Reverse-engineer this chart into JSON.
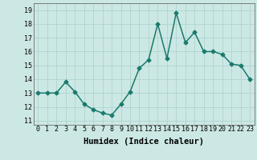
{
  "x": [
    0,
    1,
    2,
    3,
    4,
    5,
    6,
    7,
    8,
    9,
    10,
    11,
    12,
    13,
    14,
    15,
    16,
    17,
    18,
    19,
    20,
    21,
    22,
    23
  ],
  "y": [
    13.0,
    13.0,
    13.0,
    13.8,
    13.1,
    12.2,
    11.8,
    11.55,
    11.4,
    12.2,
    13.1,
    14.8,
    15.4,
    18.0,
    15.5,
    18.8,
    16.65,
    17.4,
    16.0,
    16.0,
    15.8,
    15.1,
    15.0,
    14.0
  ],
  "line_color": "#1a7a6e",
  "marker": "D",
  "marker_size": 2.5,
  "bg_color": "#cce8e4",
  "grid_color": "#aed4d0",
  "xlabel": "Humidex (Indice chaleur)",
  "xlim": [
    -0.5,
    23.5
  ],
  "ylim": [
    10.7,
    19.5
  ],
  "yticks": [
    11,
    12,
    13,
    14,
    15,
    16,
    17,
    18,
    19
  ],
  "xticks": [
    0,
    1,
    2,
    3,
    4,
    5,
    6,
    7,
    8,
    9,
    10,
    11,
    12,
    13,
    14,
    15,
    16,
    17,
    18,
    19,
    20,
    21,
    22,
    23
  ],
  "xtick_labels": [
    "0",
    "1",
    "2",
    "3",
    "4",
    "5",
    "6",
    "7",
    "8",
    "9",
    "10",
    "11",
    "12",
    "13",
    "14",
    "15",
    "16",
    "17",
    "18",
    "19",
    "20",
    "21",
    "22",
    "23"
  ],
  "tick_fontsize": 6.0,
  "xlabel_fontsize": 7.5,
  "linewidth": 1.1
}
